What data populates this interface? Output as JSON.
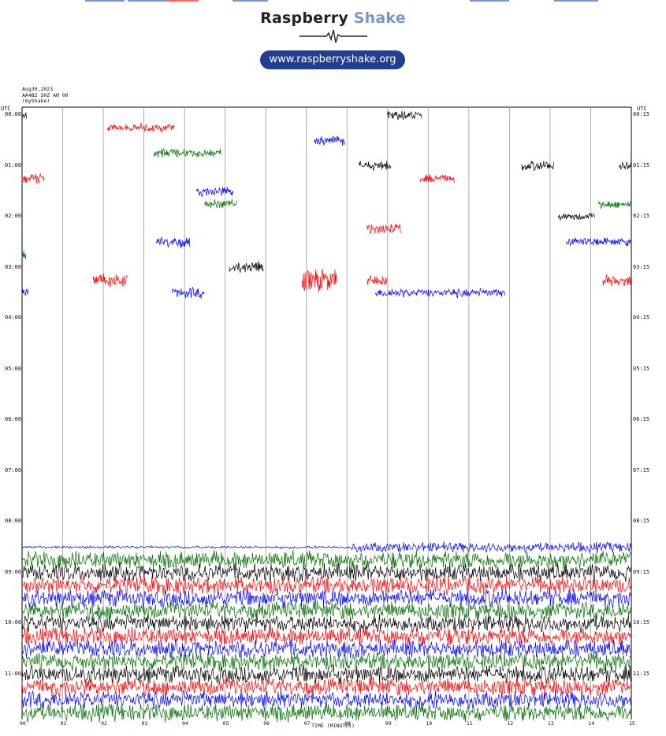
{
  "header": {
    "brand_left": "Raspberry",
    "brand_right": "Shake",
    "url": "www.raspberryshake.org"
  },
  "meta": {
    "date": "Aug30,2023",
    "station": "AA4B2 SHZ AM 00",
    "source": "(myShake)"
  },
  "colors": {
    "brand_blue": "#7b96c9",
    "pill_bg": "#223f8f",
    "trace_cycle": [
      "#000000",
      "#ff0000",
      "#0000ff",
      "#007000"
    ]
  },
  "chart_data": {
    "type": "line",
    "title": "",
    "xlabel": "TIME (MINUTES)",
    "ylabel": "UTC",
    "xlim": [
      0,
      15
    ],
    "x_ticks": [
      "00",
      "01",
      "02",
      "03",
      "04",
      "05",
      "06",
      "07",
      "08",
      "09",
      "10",
      "11",
      "12",
      "13",
      "14",
      "15"
    ],
    "left_hour_labels": [
      "00:00",
      "01:00",
      "02:00",
      "03:00",
      "04:00",
      "05:00",
      "06:00",
      "07:00",
      "08:00",
      "09:00",
      "10:00",
      "11:00"
    ],
    "right_hour_labels": [
      "00:15",
      "01:15",
      "02:15",
      "03:15",
      "04:15",
      "05:15",
      "06:15",
      "07:15",
      "08:15",
      "09:15",
      "10:15",
      "11:15"
    ],
    "rows_per_hour": 4,
    "minutes_per_row": 15,
    "bursts": [
      {
        "row": 0,
        "start_min": 0.0,
        "end_min": 0.12,
        "amp": 0.5,
        "color": "#000000"
      },
      {
        "row": 0,
        "start_min": 9.0,
        "end_min": 9.85,
        "amp": 0.6,
        "color": "#000000"
      },
      {
        "row": 1,
        "start_min": 2.1,
        "end_min": 3.75,
        "amp": 0.55,
        "color": "#ff0000"
      },
      {
        "row": 2,
        "start_min": 7.2,
        "end_min": 7.95,
        "amp": 0.6,
        "color": "#0000ff"
      },
      {
        "row": 3,
        "start_min": 3.25,
        "end_min": 4.9,
        "amp": 0.55,
        "color": "#007000"
      },
      {
        "row": 4,
        "start_min": 8.3,
        "end_min": 9.1,
        "amp": 0.6,
        "color": "#000000"
      },
      {
        "row": 4,
        "start_min": 12.3,
        "end_min": 13.1,
        "amp": 0.6,
        "color": "#000000"
      },
      {
        "row": 4,
        "start_min": 14.7,
        "end_min": 15.0,
        "amp": 0.6,
        "color": "#000000"
      },
      {
        "row": 5,
        "start_min": 0.0,
        "end_min": 0.55,
        "amp": 0.7,
        "color": "#ff0000"
      },
      {
        "row": 5,
        "start_min": 9.8,
        "end_min": 10.65,
        "amp": 0.55,
        "color": "#ff0000"
      },
      {
        "row": 6,
        "start_min": 4.3,
        "end_min": 5.2,
        "amp": 0.6,
        "color": "#0000ff"
      },
      {
        "row": 7,
        "start_min": 4.5,
        "end_min": 5.3,
        "amp": 0.6,
        "color": "#007000"
      },
      {
        "row": 7,
        "start_min": 14.2,
        "end_min": 15.0,
        "amp": 0.5,
        "color": "#007000"
      },
      {
        "row": 8,
        "start_min": 13.2,
        "end_min": 14.1,
        "amp": 0.45,
        "color": "#000000"
      },
      {
        "row": 9,
        "start_min": 8.5,
        "end_min": 9.35,
        "amp": 0.7,
        "color": "#ff0000"
      },
      {
        "row": 10,
        "start_min": 3.3,
        "end_min": 4.15,
        "amp": 0.7,
        "color": "#0000ff"
      },
      {
        "row": 10,
        "start_min": 13.4,
        "end_min": 15.0,
        "amp": 0.5,
        "color": "#0000ff"
      },
      {
        "row": 11,
        "start_min": 0.0,
        "end_min": 0.1,
        "amp": 0.6,
        "color": "#007000"
      },
      {
        "row": 12,
        "start_min": 5.1,
        "end_min": 5.95,
        "amp": 0.8,
        "color": "#000000"
      },
      {
        "row": 13,
        "start_min": 1.75,
        "end_min": 2.6,
        "amp": 0.9,
        "color": "#ff0000"
      },
      {
        "row": 13,
        "start_min": 6.9,
        "end_min": 7.75,
        "amp": 1.4,
        "color": "#ff0000"
      },
      {
        "row": 13,
        "start_min": 8.5,
        "end_min": 9.0,
        "amp": 0.6,
        "color": "#ff0000"
      },
      {
        "row": 13,
        "start_min": 14.3,
        "end_min": 15.0,
        "amp": 0.7,
        "color": "#ff0000"
      },
      {
        "row": 14,
        "start_min": 0.0,
        "end_min": 0.15,
        "amp": 0.6,
        "color": "#0000ff"
      },
      {
        "row": 14,
        "start_min": 3.7,
        "end_min": 4.5,
        "amp": 0.7,
        "color": "#0000ff"
      },
      {
        "row": 14,
        "start_min": 8.7,
        "end_min": 11.9,
        "amp": 0.55,
        "color": "#0000ff"
      }
    ],
    "dense_start_row": 35,
    "dense_end_row": 47,
    "dense_amp": 1.5,
    "step_row": 34,
    "step_start_min": 8.1,
    "step_amp": 0.8,
    "grid": true
  }
}
